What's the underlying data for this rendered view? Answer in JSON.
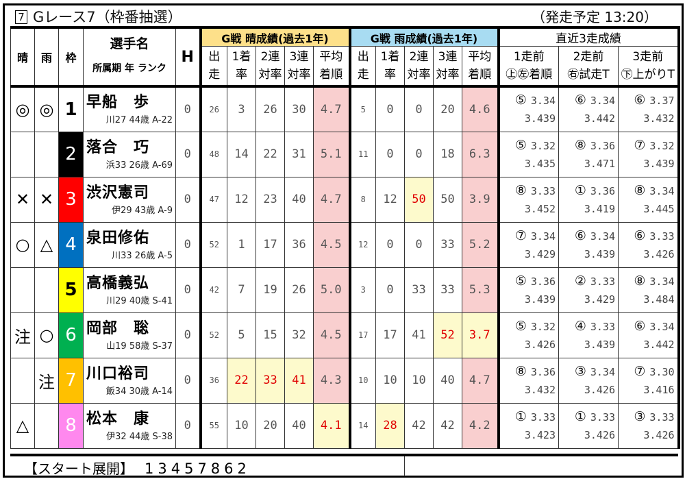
{
  "title": {
    "race_no": "7",
    "text": "Gレース7（枠番抽選）",
    "start_time": "（発走予定 13:20）"
  },
  "header": {
    "sunny": "晴",
    "rain": "雨",
    "waku": "枠",
    "player": "選手名",
    "player_sub": "所属期 年 ランク",
    "h": "H",
    "sunny_group": "G戦 晴成績(過去1年)",
    "rain_group": "G戦 雨成績(過去1年)",
    "recent_group": "直近3走成績",
    "stat_cols": [
      [
        "出",
        "走"
      ],
      [
        "1着",
        "率"
      ],
      [
        "2連",
        "対率"
      ],
      [
        "3連",
        "対率"
      ],
      [
        "平均",
        "着順"
      ]
    ],
    "recent_cols": [
      [
        "1走前",
        "㊤㊧着順"
      ],
      [
        "2走前",
        "㊨試走T"
      ],
      [
        "3走前",
        "㊦上がりT"
      ]
    ]
  },
  "colors": {
    "group_sunny": "#fde08a",
    "group_rain": "#a8dcf2",
    "avg_bg": "#f9cfcf",
    "best_bg": "#fdfacc",
    "best_text": "#e00000"
  },
  "rows": [
    {
      "sun": "◎",
      "rain": "◎",
      "waku": "1",
      "waku_bg": "#ffffff",
      "waku_fg": "#000000",
      "name": "早船　歩",
      "info": "川27 44歳 A-22",
      "h": "0",
      "s": [
        "26",
        "3",
        "26",
        "30",
        "4.7"
      ],
      "r": [
        "5",
        "0",
        "0",
        "20",
        "4.6"
      ],
      "best_s": [],
      "best_r": [],
      "recent": [
        [
          "⑤",
          "3.34",
          "3.439"
        ],
        [
          "⑥",
          "3.34",
          "3.442"
        ],
        [
          "⑥",
          "3.37",
          "3.432"
        ]
      ]
    },
    {
      "sun": "",
      "rain": "",
      "waku": "2",
      "waku_bg": "#000000",
      "waku_fg": "#ffffff",
      "name": "落合　巧",
      "info": "浜33 26歳 A-69",
      "h": "0",
      "s": [
        "48",
        "14",
        "22",
        "31",
        "5.1"
      ],
      "r": [
        "11",
        "0",
        "0",
        "18",
        "6.3"
      ],
      "best_s": [],
      "best_r": [],
      "recent": [
        [
          "⑤",
          "3.32",
          "3.435"
        ],
        [
          "⑧",
          "3.36",
          "3.471"
        ],
        [
          "⑦",
          "3.32",
          "3.439"
        ]
      ]
    },
    {
      "sun": "✕",
      "rain": "✕",
      "waku": "3",
      "waku_bg": "#ff0000",
      "waku_fg": "#ffffff",
      "name": "渋沢憲司",
      "info": "伊29 43歳 A-9",
      "h": "0",
      "s": [
        "47",
        "12",
        "23",
        "40",
        "4.7"
      ],
      "r": [
        "8",
        "12",
        "50",
        "50",
        "3.9"
      ],
      "best_s": [],
      "best_r": [
        2
      ],
      "recent": [
        [
          "⑧",
          "3.33",
          "3.452"
        ],
        [
          "①",
          "3.36",
          "3.419"
        ],
        [
          "⑧",
          "3.34",
          "3.445"
        ]
      ]
    },
    {
      "sun": "○",
      "rain": "△",
      "waku": "4",
      "waku_bg": "#0070c0",
      "waku_fg": "#ffffff",
      "name": "泉田修佑",
      "info": "川33 26歳 A-5",
      "h": "0",
      "s": [
        "52",
        "1",
        "17",
        "36",
        "4.5"
      ],
      "r": [
        "12",
        "0",
        "0",
        "33",
        "5.2"
      ],
      "best_s": [],
      "best_r": [],
      "recent": [
        [
          "⑦",
          "3.34",
          "3.429"
        ],
        [
          "⑥",
          "3.34",
          "3.439"
        ],
        [
          "⑥",
          "3.33",
          "3.426"
        ]
      ]
    },
    {
      "sun": "",
      "rain": "",
      "waku": "5",
      "waku_bg": "#ffff00",
      "waku_fg": "#000000",
      "name": "高橋義弘",
      "info": "川29 40歳 S-41",
      "h": "0",
      "s": [
        "42",
        "7",
        "19",
        "26",
        "5.0"
      ],
      "r": [
        "3",
        "0",
        "33",
        "33",
        "5.3"
      ],
      "best_s": [],
      "best_r": [],
      "recent": [
        [
          "⑤",
          "3.36",
          "3.439"
        ],
        [
          "②",
          "3.33",
          "3.429"
        ],
        [
          "⑧",
          "3.34",
          "3.484"
        ]
      ]
    },
    {
      "sun": "注",
      "rain": "○",
      "waku": "6",
      "waku_bg": "#00b050",
      "waku_fg": "#ffffff",
      "name": "岡部　聡",
      "info": "山19 58歳 S-37",
      "h": "0",
      "s": [
        "52",
        "5",
        "15",
        "32",
        "4.5"
      ],
      "r": [
        "17",
        "17",
        "41",
        "52",
        "3.7"
      ],
      "best_s": [],
      "best_r": [
        3,
        4
      ],
      "recent": [
        [
          "⑤",
          "3.32",
          "3.426"
        ],
        [
          "④",
          "3.33",
          "3.439"
        ],
        [
          "⑥",
          "3.34",
          "3.442"
        ]
      ]
    },
    {
      "sun": "",
      "rain": "注",
      "waku": "7",
      "waku_bg": "#ffc000",
      "waku_fg": "#ffffff",
      "name": "川口裕司",
      "info": "飯34 30歳 A-14",
      "h": "0",
      "s": [
        "36",
        "22",
        "33",
        "41",
        "4.3"
      ],
      "r": [
        "10",
        "10",
        "10",
        "40",
        "4.7"
      ],
      "best_s": [
        1,
        2,
        3
      ],
      "best_r": [],
      "recent": [
        [
          "⑧",
          "3.36",
          "3.432"
        ],
        [
          "③",
          "3.34",
          "3.426"
        ],
        [
          "⑦",
          "3.30",
          "3.416"
        ]
      ]
    },
    {
      "sun": "△",
      "rain": "",
      "waku": "8",
      "waku_bg": "#ff88ee",
      "waku_fg": "#ffffff",
      "name": "松本　康",
      "info": "伊32 44歳 S-38",
      "h": "0",
      "s": [
        "55",
        "10",
        "20",
        "40",
        "4.1"
      ],
      "r": [
        "14",
        "28",
        "42",
        "42",
        "4.2"
      ],
      "best_s": [
        4
      ],
      "best_r": [
        1
      ],
      "recent": [
        [
          "①",
          "3.33",
          "3.423"
        ],
        [
          "①",
          "3.33",
          "3.426"
        ],
        [
          "③",
          "3.33",
          "3.426"
        ]
      ]
    }
  ],
  "footer": {
    "label": "【スタート展開】",
    "order": "13457862"
  }
}
